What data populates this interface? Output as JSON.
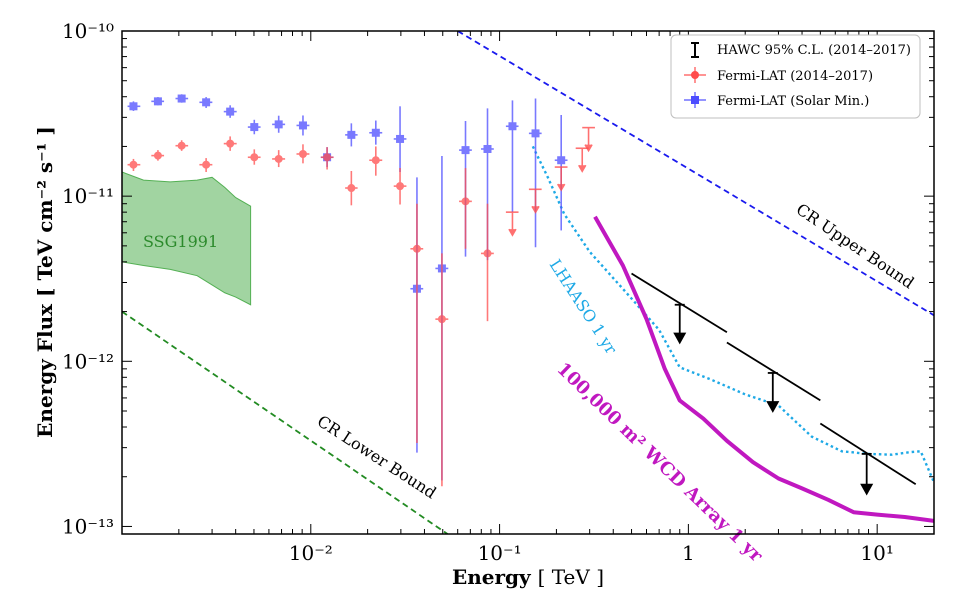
{
  "chart_data": {
    "type": "scatter",
    "xscale": "log",
    "yscale": "log",
    "xlim": [
      0.001,
      20
    ],
    "ylim": [
      9e-14,
      1e-10
    ],
    "xlabel": "Energy",
    "xunit": "[ TeV ]",
    "ylabel": "Energy Flux",
    "yunit": "[ TeV cm⁻² s⁻¹ ]",
    "x_ticks": [
      {
        "value": 0.01,
        "label": "10⁻²"
      },
      {
        "value": 0.1,
        "label": "10⁻¹"
      },
      {
        "value": 1,
        "label": "1"
      },
      {
        "value": 10,
        "label": "10¹"
      }
    ],
    "y_ticks": [
      {
        "value": 1e-13,
        "label": "10⁻¹³"
      },
      {
        "value": 1e-12,
        "label": "10⁻¹²"
      },
      {
        "value": 1e-11,
        "label": "10⁻¹¹"
      },
      {
        "value": 1e-10,
        "label": "10⁻¹⁰"
      }
    ],
    "legend": {
      "position": "top-right",
      "entries": [
        {
          "label": "HAWC 95% C.L. (2014–2017)",
          "color": "#000000",
          "marker": "errorbar"
        },
        {
          "label": "Fermi-LAT (2014–2017)",
          "color": "#ff4d4d",
          "marker": "circle"
        },
        {
          "label": "Fermi-LAT (Solar Min.)",
          "color": "#4d4dff",
          "marker": "square"
        }
      ]
    },
    "series": [
      {
        "name": "Fermi-LAT (Solar Min.)",
        "color": "#4d4dff",
        "marker": "square",
        "points": [
          {
            "x": 0.00115,
            "y": 3.5e-11,
            "xlo": 0.00107,
            "xhi": 0.00125,
            "ylo": 3.28e-11,
            "yhi": 3.75e-11
          },
          {
            "x": 0.00155,
            "y": 3.75e-11,
            "xlo": 0.00143,
            "xhi": 0.00167,
            "ylo": 3.55e-11,
            "yhi": 3.98e-11
          },
          {
            "x": 0.00207,
            "y": 3.9e-11,
            "xlo": 0.00192,
            "xhi": 0.00224,
            "ylo": 3.68e-11,
            "yhi": 4.14e-11
          },
          {
            "x": 0.00279,
            "y": 3.7e-11,
            "xlo": 0.00257,
            "xhi": 0.00301,
            "ylo": 3.42e-11,
            "yhi": 3.98e-11
          },
          {
            "x": 0.00374,
            "y": 3.25e-11,
            "xlo": 0.00346,
            "xhi": 0.00405,
            "ylo": 2.98e-11,
            "yhi": 3.55e-11
          },
          {
            "x": 0.00502,
            "y": 2.62e-11,
            "xlo": 0.00464,
            "xhi": 0.00542,
            "ylo": 2.37e-11,
            "yhi": 2.9e-11
          },
          {
            "x": 0.00676,
            "y": 2.72e-11,
            "xlo": 0.00624,
            "xhi": 0.00731,
            "ylo": 2.42e-11,
            "yhi": 3.07e-11
          },
          {
            "x": 0.00909,
            "y": 2.68e-11,
            "xlo": 0.0084,
            "xhi": 0.00983,
            "ylo": 2.33e-11,
            "yhi": 3.08e-11
          },
          {
            "x": 0.0122,
            "y": 1.72e-11,
            "xlo": 0.0113,
            "xhi": 0.0132,
            "ylo": 1.5e-11,
            "yhi": 1.98e-11
          },
          {
            "x": 0.0164,
            "y": 2.35e-11,
            "xlo": 0.0152,
            "xhi": 0.0177,
            "ylo": 2e-11,
            "yhi": 2.76e-11
          },
          {
            "x": 0.0221,
            "y": 2.42e-11,
            "xlo": 0.0204,
            "xhi": 0.0239,
            "ylo": 2.05e-11,
            "yhi": 2.87e-11
          },
          {
            "x": 0.0297,
            "y": 2.22e-11,
            "xlo": 0.0275,
            "xhi": 0.0321,
            "ylo": 1.4e-11,
            "yhi": 3.5e-11
          },
          {
            "x": 0.0365,
            "y": 2.75e-12,
            "xlo": 0.0337,
            "xhi": 0.0394,
            "ylo": 2.8e-13,
            "yhi": 1.3e-11
          },
          {
            "x": 0.0495,
            "y": 3.65e-12,
            "xlo": 0.0457,
            "xhi": 0.0535,
            "ylo": 1.9e-13,
            "yhi": 1.75e-11
          },
          {
            "x": 0.066,
            "y": 1.9e-11,
            "xlo": 0.061,
            "xhi": 0.0713,
            "ylo": 4.3e-12,
            "yhi": 2.85e-11
          },
          {
            "x": 0.0863,
            "y": 1.93e-11,
            "xlo": 0.0797,
            "xhi": 0.0932,
            "ylo": 4.1e-12,
            "yhi": 3.4e-11
          },
          {
            "x": 0.117,
            "y": 2.65e-11,
            "xlo": 0.108,
            "xhi": 0.126,
            "ylo": 8e-12,
            "yhi": 3.8e-11
          },
          {
            "x": 0.155,
            "y": 2.4e-11,
            "xlo": 0.143,
            "xhi": 0.167,
            "ylo": 4.9e-12,
            "yhi": 3.9e-11
          },
          {
            "x": 0.212,
            "y": 1.65e-11,
            "xlo": 0.196,
            "xhi": 0.229,
            "ylo": 6.2e-12,
            "yhi": 3.1e-11
          }
        ]
      },
      {
        "name": "Fermi-LAT (2014–2017)",
        "color": "#ff4d4d",
        "marker": "circle",
        "points": [
          {
            "x": 0.00115,
            "y": 1.55e-11,
            "xlo": 0.00107,
            "xhi": 0.00125,
            "ylo": 1.42e-11,
            "yhi": 1.68e-11
          },
          {
            "x": 0.00155,
            "y": 1.76e-11,
            "xlo": 0.00143,
            "xhi": 0.00167,
            "ylo": 1.64e-11,
            "yhi": 1.9e-11
          },
          {
            "x": 0.00207,
            "y": 2.02e-11,
            "xlo": 0.00192,
            "xhi": 0.00224,
            "ylo": 1.88e-11,
            "yhi": 2.18e-11
          },
          {
            "x": 0.00279,
            "y": 1.55e-11,
            "xlo": 0.00257,
            "xhi": 0.00301,
            "ylo": 1.4e-11,
            "yhi": 1.7e-11
          },
          {
            "x": 0.00374,
            "y": 2.08e-11,
            "xlo": 0.00346,
            "xhi": 0.00405,
            "ylo": 1.88e-11,
            "yhi": 2.3e-11
          },
          {
            "x": 0.00502,
            "y": 1.72e-11,
            "xlo": 0.00464,
            "xhi": 0.00542,
            "ylo": 1.55e-11,
            "yhi": 1.92e-11
          },
          {
            "x": 0.00676,
            "y": 1.68e-11,
            "xlo": 0.00624,
            "xhi": 0.00731,
            "ylo": 1.5e-11,
            "yhi": 1.9e-11
          },
          {
            "x": 0.00909,
            "y": 1.8e-11,
            "xlo": 0.0084,
            "xhi": 0.00983,
            "ylo": 1.58e-11,
            "yhi": 2.06e-11
          },
          {
            "x": 0.0122,
            "y": 1.72e-11,
            "xlo": 0.0113,
            "xhi": 0.0132,
            "ylo": 1.45e-11,
            "yhi": 1.98e-11
          },
          {
            "x": 0.0164,
            "y": 1.12e-11,
            "xlo": 0.0152,
            "xhi": 0.0177,
            "ylo": 8.8e-12,
            "yhi": 1.42e-11
          },
          {
            "x": 0.0221,
            "y": 1.65e-11,
            "xlo": 0.0204,
            "xhi": 0.0239,
            "ylo": 1.33e-11,
            "yhi": 2e-11
          },
          {
            "x": 0.0297,
            "y": 1.15e-11,
            "xlo": 0.0275,
            "xhi": 0.0321,
            "ylo": 8.9e-12,
            "yhi": 1.48e-11
          },
          {
            "x": 0.0365,
            "y": 4.8e-12,
            "xlo": 0.0337,
            "xhi": 0.0394,
            "ylo": 3.2e-13,
            "yhi": 9e-12
          },
          {
            "x": 0.0495,
            "y": 1.8e-12,
            "xlo": 0.0457,
            "xhi": 0.0535,
            "ylo": 1.75e-13,
            "yhi": 4.5e-12
          },
          {
            "x": 0.066,
            "y": 9.3e-12,
            "xlo": 0.061,
            "xhi": 0.0713,
            "ylo": 4.8e-12,
            "yhi": 1.48e-11
          },
          {
            "x": 0.0863,
            "y": 4.5e-12,
            "xlo": 0.0797,
            "xhi": 0.0932,
            "ylo": 1.75e-12,
            "yhi": 9e-12
          }
        ]
      },
      {
        "name": "Fermi-LAT (2014–2017) upper limits",
        "color": "#ff4d4d",
        "marker": "upper-limit",
        "points": [
          {
            "x": 0.117,
            "y": 8e-12,
            "xlo": 0.108,
            "xhi": 0.126
          },
          {
            "x": 0.155,
            "y": 1.1e-11,
            "xlo": 0.143,
            "xhi": 0.167
          },
          {
            "x": 0.212,
            "y": 1.5e-11,
            "xlo": 0.196,
            "xhi": 0.229
          },
          {
            "x": 0.274,
            "y": 1.95e-11,
            "xlo": 0.253,
            "xhi": 0.296
          },
          {
            "x": 0.296,
            "y": 2.6e-11,
            "xlo": 0.274,
            "xhi": 0.32
          }
        ]
      },
      {
        "name": "HAWC 95% C.L. (2014–2017)",
        "color": "#000000",
        "marker": "upper-limit",
        "points": [
          {
            "x": 0.9,
            "y": 2.2e-12,
            "x0": 0.5,
            "y0": 3.4e-12,
            "x1": 1.6,
            "y1": 1.5e-12,
            "arrow_to": 1.3e-12
          },
          {
            "x": 2.8,
            "y": 8.5e-13,
            "x0": 1.6,
            "y0": 1.3e-12,
            "x1": 5.0,
            "y1": 5.8e-13,
            "arrow_to": 5e-13
          },
          {
            "x": 8.8,
            "y": 2.75e-13,
            "x0": 5.0,
            "y0": 4.2e-13,
            "x1": 16.0,
            "y1": 1.8e-13,
            "arrow_to": 1.58e-13
          }
        ]
      }
    ],
    "lines": [
      {
        "name": "CR Upper Bound",
        "label": "CR Upper Bound",
        "color": "#1a1aee",
        "dash": "dashed",
        "x": [
          0.06,
          20
        ],
        "y": [
          1e-10,
          1.9e-12
        ]
      },
      {
        "name": "CR Lower Bound",
        "label": "CR Lower Bound",
        "color": "#228b22",
        "dash": "dashed",
        "x": [
          0.001,
          0.053
        ],
        "y": [
          2e-12,
          9e-14
        ]
      },
      {
        "name": "LHAASO 1 yr",
        "label": "LHAASO 1 yr",
        "color": "#1ea9e6",
        "dash": "dotted",
        "x": [
          0.15,
          0.18,
          0.22,
          0.3,
          0.5,
          0.7,
          0.9,
          1.3,
          2.0,
          3.0,
          4.5,
          6.5,
          9.0,
          12.0,
          15.0,
          17.0,
          20.0
        ],
        "y": [
          2e-11,
          1.3e-11,
          7.8e-12,
          4.6e-12,
          2.4e-12,
          1.55e-12,
          9.2e-13,
          7.8e-13,
          6.3e-13,
          5.4e-13,
          3.5e-13,
          2.85e-13,
          2.75e-13,
          2.72e-13,
          2.82e-13,
          2.85e-13,
          1.85e-13
        ]
      },
      {
        "name": "100,000 m² WCD Array 1 yr",
        "label": "100,000 m² WCD Array 1 yr",
        "color": "#c018c0",
        "dash": "solid",
        "x": [
          0.32,
          0.45,
          0.6,
          0.75,
          0.9,
          1.2,
          1.6,
          2.2,
          3.0,
          4.0,
          5.5,
          7.5,
          10.0,
          14.0,
          20.0
        ],
        "y": [
          7.5e-12,
          3.8e-12,
          1.8e-12,
          9e-13,
          5.8e-13,
          4.5e-13,
          3.3e-13,
          2.45e-13,
          1.95e-13,
          1.7e-13,
          1.45e-13,
          1.22e-13,
          1.18e-13,
          1.14e-13,
          1.08e-13
        ]
      }
    ],
    "region": {
      "name": "SSG1991",
      "label": "SSG1991",
      "color": "#54b054",
      "x": [
        0.001,
        0.0013,
        0.0018,
        0.0025,
        0.003,
        0.0035,
        0.004,
        0.0048
      ],
      "upper": [
        1.4e-11,
        1.25e-11,
        1.22e-11,
        1.25e-11,
        1.3e-11,
        1.13e-11,
        9.8e-12,
        8.7e-12
      ],
      "lower": [
        4e-12,
        3.8e-12,
        3.6e-12,
        3.3e-12,
        2.9e-12,
        2.6e-12,
        2.45e-12,
        2.2e-12
      ]
    }
  }
}
